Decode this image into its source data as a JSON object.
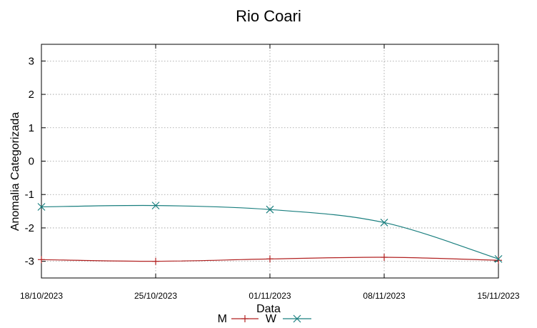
{
  "chart_data": {
    "type": "line",
    "title": "Rio Coari",
    "xlabel": "Data",
    "ylabel": "Anomalia Categorizada",
    "x": [
      "18/10/2023",
      "25/10/2023",
      "01/11/2023",
      "08/11/2023",
      "15/11/2023"
    ],
    "ylim": [
      -3.5,
      3.5
    ],
    "yticks": [
      "3",
      "2",
      "1",
      "0",
      "-1",
      "-2",
      "-3"
    ],
    "ytick_values": [
      3,
      2,
      1,
      0,
      -1,
      -2,
      -3
    ],
    "grid": true,
    "legend_position": "bottom-center",
    "series": [
      {
        "name": "M",
        "color": "#b22222",
        "marker": "plus",
        "values": [
          -2.95,
          -3.0,
          -2.93,
          -2.88,
          -2.97
        ]
      },
      {
        "name": "W",
        "color": "#1a7f7f",
        "marker": "x",
        "values": [
          -1.37,
          -1.33,
          -1.45,
          -1.84,
          -2.93
        ]
      }
    ]
  }
}
